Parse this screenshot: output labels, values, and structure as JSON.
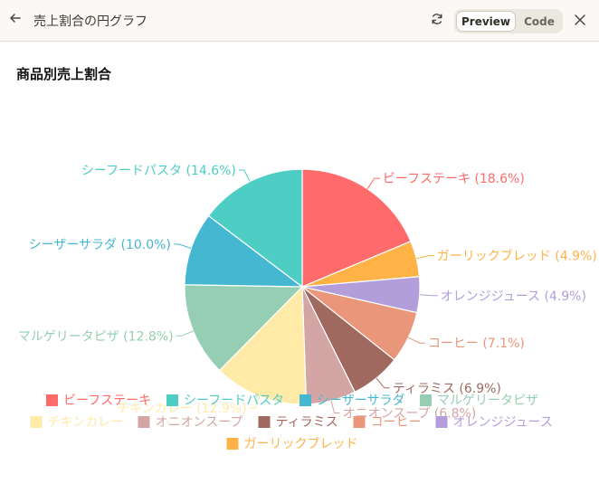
{
  "window": {
    "title": "売上割合の円グラフ",
    "tabs": {
      "preview": "Preview",
      "code": "Code"
    }
  },
  "icons": {
    "back": "arrow-left-icon",
    "refresh": "refresh-icon",
    "close": "close-icon"
  },
  "chart_data": {
    "type": "pie",
    "title": "商品別売上割合",
    "legend_position": "bottom",
    "slices": [
      {
        "label": "ビーフステーキ",
        "value": 18.6,
        "color": "#ff6b6b",
        "display": "ビーフステーキ (18.6%)"
      },
      {
        "label": "ガーリックブレッド",
        "value": 4.9,
        "color": "#ffb347",
        "display": "ガーリックブレッド (4.9%)"
      },
      {
        "label": "オレンジジュース",
        "value": 4.9,
        "color": "#b39ddb",
        "display": "オレンジジュース (4.9%)"
      },
      {
        "label": "コーヒー",
        "value": 7.1,
        "color": "#e9967a",
        "display": "コーヒー (7.1%)"
      },
      {
        "label": "ティラミス",
        "value": 6.9,
        "color": "#a0695f",
        "display": "ティラミス (6.9%)"
      },
      {
        "label": "オニオンスープ",
        "value": 6.8,
        "color": "#d4a5a5",
        "display": "オニオンスープ (6.8%)"
      },
      {
        "label": "チキンカレー",
        "value": 12.9,
        "color": "#ffeaa7",
        "display": "チキンカレー (12.9%)"
      },
      {
        "label": "マルゲリータピザ",
        "value": 12.8,
        "color": "#96ceb4",
        "display": "マルゲリータピザ (12.8%)"
      },
      {
        "label": "シーザーサラダ",
        "value": 10.0,
        "color": "#45b7d1",
        "display": "シーザーサラダ (10.0%)"
      },
      {
        "label": "シーフードパスタ",
        "value": 14.6,
        "color": "#4ecdc4",
        "display": "シーフードパスタ (14.6%)"
      }
    ],
    "legend_order": [
      "ビーフステーキ",
      "シーフードパスタ",
      "シーザーサラダ",
      "マルゲリータピザ",
      "チキンカレー",
      "オニオンスープ",
      "ティラミス",
      "コーヒー",
      "オレンジジュース",
      "ガーリックブレッド"
    ]
  }
}
